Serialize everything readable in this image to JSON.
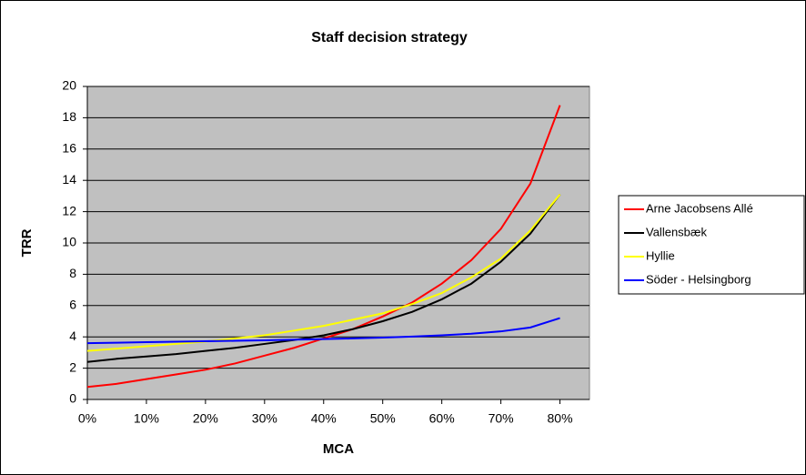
{
  "chart_data": {
    "type": "line",
    "title": "Staff decision strategy",
    "x_label": "MCA",
    "y_label": "TRR",
    "x": [
      0,
      5,
      10,
      15,
      20,
      25,
      30,
      35,
      40,
      45,
      50,
      55,
      60,
      65,
      70,
      75,
      80
    ],
    "series": [
      {
        "name": "Arne Jacobsens Allé",
        "color": "#ff0000",
        "values": [
          0.8,
          1.0,
          1.3,
          1.6,
          1.9,
          2.3,
          2.8,
          3.3,
          3.9,
          4.5,
          5.3,
          6.2,
          7.4,
          8.9,
          10.9,
          13.8,
          18.8
        ]
      },
      {
        "name": "Vallensbæk",
        "color": "#000000",
        "values": [
          2.4,
          2.6,
          2.75,
          2.9,
          3.1,
          3.3,
          3.55,
          3.8,
          4.1,
          4.5,
          5.0,
          5.6,
          6.4,
          7.4,
          8.8,
          10.6,
          13.1
        ]
      },
      {
        "name": "Hyllie",
        "color": "#ffff00",
        "values": [
          3.1,
          3.25,
          3.4,
          3.55,
          3.7,
          3.9,
          4.1,
          4.4,
          4.7,
          5.1,
          5.5,
          6.1,
          6.8,
          7.8,
          9.0,
          10.8,
          13.1
        ]
      },
      {
        "name": "Söder - Helsingborg",
        "color": "#0000ff",
        "values": [
          3.6,
          3.63,
          3.66,
          3.69,
          3.72,
          3.75,
          3.78,
          3.82,
          3.86,
          3.9,
          3.95,
          4.02,
          4.1,
          4.2,
          4.35,
          4.6,
          5.2
        ]
      }
    ],
    "xlim": [
      0,
      85
    ],
    "xticks": [
      {
        "value": 0,
        "label": "0%"
      },
      {
        "value": 10,
        "label": "10%"
      },
      {
        "value": 20,
        "label": "20%"
      },
      {
        "value": 30,
        "label": "30%"
      },
      {
        "value": 40,
        "label": "40%"
      },
      {
        "value": 50,
        "label": "50%"
      },
      {
        "value": 60,
        "label": "60%"
      },
      {
        "value": 70,
        "label": "70%"
      },
      {
        "value": 80,
        "label": "80%"
      }
    ],
    "ylim": [
      0,
      20
    ],
    "yticks": [
      0,
      2,
      4,
      6,
      8,
      10,
      12,
      14,
      16,
      18,
      20
    ],
    "grid": true,
    "legend": "right",
    "plot_background": "#c0c0c0"
  }
}
